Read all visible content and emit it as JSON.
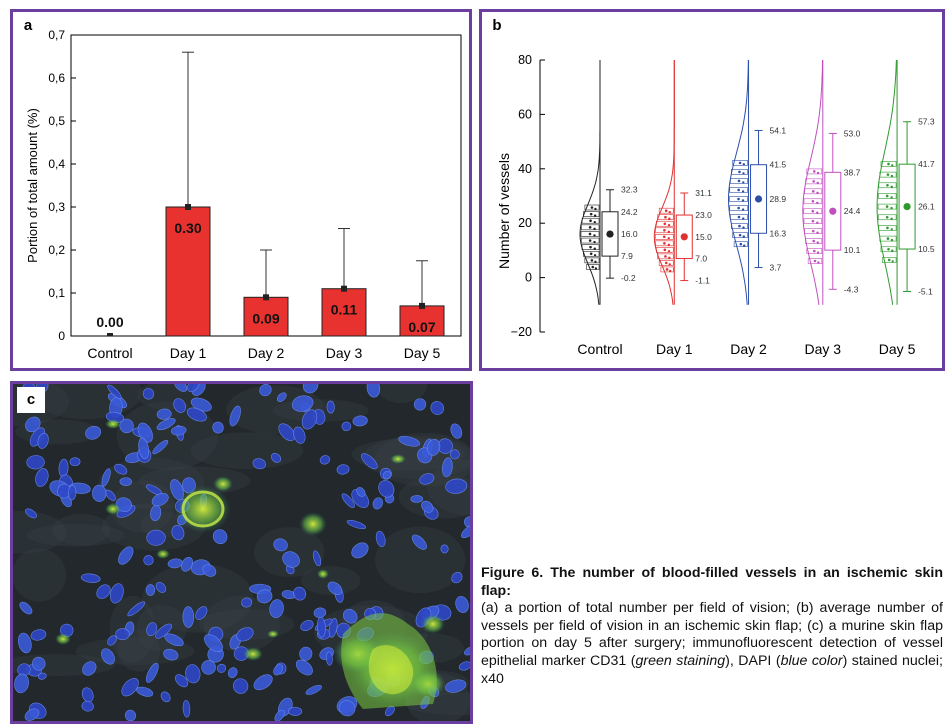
{
  "panels": {
    "a": "a",
    "b": "b",
    "c": "c"
  },
  "chart_data": [
    {
      "panel": "a",
      "type": "bar",
      "ylabel": "Portion of total amount (%)",
      "ylim": [
        0,
        0.7
      ],
      "yticks": [
        "0",
        "0,1",
        "0,2",
        "0,3",
        "0,4",
        "0,5",
        "0,6",
        "0,7"
      ],
      "categories": [
        "Control",
        "Day 1",
        "Day 2",
        "Day 3",
        "Day 5"
      ],
      "values": [
        0.0,
        0.3,
        0.09,
        0.11,
        0.07
      ],
      "error_upper": [
        0.0,
        0.66,
        0.2,
        0.25,
        0.175
      ],
      "data_labels": [
        "0.00",
        "0.30",
        "0.09",
        "0.11",
        "0.07"
      ],
      "bar_color": "#e8322f"
    },
    {
      "panel": "b",
      "type": "box",
      "ylabel": "Number of vessels",
      "ylim": [
        -20,
        80
      ],
      "yticks": [
        "−20",
        "0",
        "20",
        "40",
        "60",
        "80"
      ],
      "categories": [
        "Control",
        "Day 1",
        "Day 2",
        "Day 3",
        "Day 5"
      ],
      "colors": [
        "#222222",
        "#e03030",
        "#2d4fa8",
        "#c050c0",
        "#2e9a2e"
      ],
      "groups": [
        {
          "max": 32.3,
          "q3": 24.2,
          "mean": 16.0,
          "q1": 7.9,
          "min": -0.2,
          "labels": [
            "32.3",
            "24.2",
            "16.0",
            "7.9",
            "-0.2"
          ]
        },
        {
          "max": 31.1,
          "q3": 23.0,
          "mean": 15.0,
          "q1": 7.0,
          "min": -1.1,
          "labels": [
            "31.1",
            "23.0",
            "15.0",
            "7.0",
            "-1.1"
          ]
        },
        {
          "max": 54.1,
          "q3": 41.5,
          "mean": 28.9,
          "q1": 16.3,
          "min": 3.7,
          "labels": [
            "54.1",
            "41.5",
            "28.9",
            "16.3",
            "3.7"
          ]
        },
        {
          "max": 53.0,
          "q3": 38.7,
          "mean": 24.4,
          "q1": 10.1,
          "min": -4.3,
          "labels": [
            "53.0",
            "38.7",
            "24.4",
            "10.1",
            "-4.3"
          ]
        },
        {
          "max": 57.3,
          "q3": 41.7,
          "mean": 26.1,
          "q1": 10.5,
          "min": -5.1,
          "labels": [
            "57.3",
            "41.7",
            "26.1",
            "10.5",
            "-5.1"
          ]
        }
      ]
    }
  ],
  "caption": {
    "title": "Figure 6. The number of blood-filled vessels in an ischemic skin flap:",
    "part1": "(a) a portion of total number per field of vision; (b) average number of vessels per field of vision  in an ischemic skin flap; (c) a murine skin flap portion on day 5 after surgery; immunofluorescent detection of vessel epithelial marker CD31 (",
    "green": "green staining",
    "part2": "), DAPI (",
    "blue": "blue color",
    "part3": ") stained nuclei; x40"
  }
}
